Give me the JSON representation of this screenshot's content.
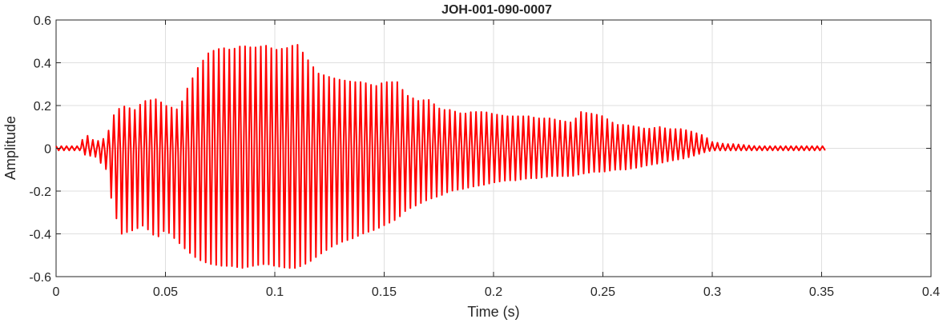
{
  "chart_data": {
    "type": "line",
    "title": "JOH-001-090-0007",
    "xlabel": "Time (s)",
    "ylabel": "Amplitude",
    "xlim": [
      0,
      0.4
    ],
    "ylim": [
      -0.6,
      0.6
    ],
    "xticks": [
      0,
      0.05,
      0.1,
      0.15,
      0.2,
      0.25,
      0.3,
      0.35,
      0.4
    ],
    "xtick_labels": [
      "0",
      "0.05",
      "0.1",
      "0.15",
      "0.2",
      "0.25",
      "0.3",
      "0.35",
      "0.4"
    ],
    "yticks": [
      -0.6,
      -0.4,
      -0.2,
      0,
      0.2,
      0.4,
      0.6
    ],
    "ytick_labels": [
      "-0.6",
      "-0.4",
      "-0.2",
      "0",
      "0.2",
      "0.4",
      "0.6"
    ],
    "grid": true,
    "line_color": "#ff0000",
    "series": [
      {
        "x": [
          0,
          0.011,
          0.013,
          0.018,
          0.023,
          0.026,
          0.03,
          0.036,
          0.04,
          0.046,
          0.05,
          0.056,
          0.06,
          0.065,
          0.07,
          0.076,
          0.08,
          0.085,
          0.09,
          0.096,
          0.1,
          0.106,
          0.11,
          0.116,
          0.12,
          0.126,
          0.13,
          0.136,
          0.14,
          0.146,
          0.15,
          0.156,
          0.16,
          0.166,
          0.17,
          0.176,
          0.18,
          0.186,
          0.19,
          0.196,
          0.2,
          0.206,
          0.21,
          0.216,
          0.22,
          0.226,
          0.23,
          0.236,
          0.24,
          0.246,
          0.25,
          0.256,
          0.26,
          0.266,
          0.27,
          0.276,
          0.28,
          0.286,
          0.29,
          0.296,
          0.3,
          0.306,
          0.31,
          0.32,
          0.33,
          0.34,
          0.35,
          0.352
        ],
        "max": [
          0.01,
          0.01,
          0.07,
          0.03,
          0.05,
          0.15,
          0.2,
          0.18,
          0.22,
          0.23,
          0.2,
          0.18,
          0.28,
          0.38,
          0.45,
          0.47,
          0.46,
          0.48,
          0.47,
          0.48,
          0.46,
          0.47,
          0.49,
          0.4,
          0.35,
          0.33,
          0.32,
          0.31,
          0.31,
          0.29,
          0.31,
          0.31,
          0.25,
          0.22,
          0.23,
          0.18,
          0.18,
          0.16,
          0.17,
          0.17,
          0.16,
          0.15,
          0.15,
          0.15,
          0.14,
          0.14,
          0.13,
          0.12,
          0.17,
          0.16,
          0.15,
          0.11,
          0.11,
          0.1,
          0.09,
          0.1,
          0.09,
          0.09,
          0.08,
          0.06,
          0.03,
          0.02,
          0.02,
          0.01,
          0.01,
          0.01,
          0.01,
          0.01
        ],
        "min": [
          -0.01,
          -0.01,
          -0.03,
          -0.04,
          -0.1,
          -0.28,
          -0.4,
          -0.38,
          -0.36,
          -0.42,
          -0.38,
          -0.44,
          -0.48,
          -0.52,
          -0.54,
          -0.55,
          -0.55,
          -0.56,
          -0.55,
          -0.54,
          -0.55,
          -0.56,
          -0.56,
          -0.53,
          -0.5,
          -0.46,
          -0.44,
          -0.42,
          -0.4,
          -0.38,
          -0.36,
          -0.33,
          -0.29,
          -0.26,
          -0.24,
          -0.22,
          -0.2,
          -0.19,
          -0.18,
          -0.17,
          -0.16,
          -0.15,
          -0.15,
          -0.14,
          -0.14,
          -0.13,
          -0.13,
          -0.13,
          -0.12,
          -0.11,
          -0.11,
          -0.1,
          -0.1,
          -0.09,
          -0.08,
          -0.07,
          -0.06,
          -0.05,
          -0.04,
          -0.02,
          -0.01,
          -0.01,
          -0.01,
          -0.01,
          -0.01,
          -0.01,
          -0.01,
          -0.01
        ]
      }
    ]
  }
}
